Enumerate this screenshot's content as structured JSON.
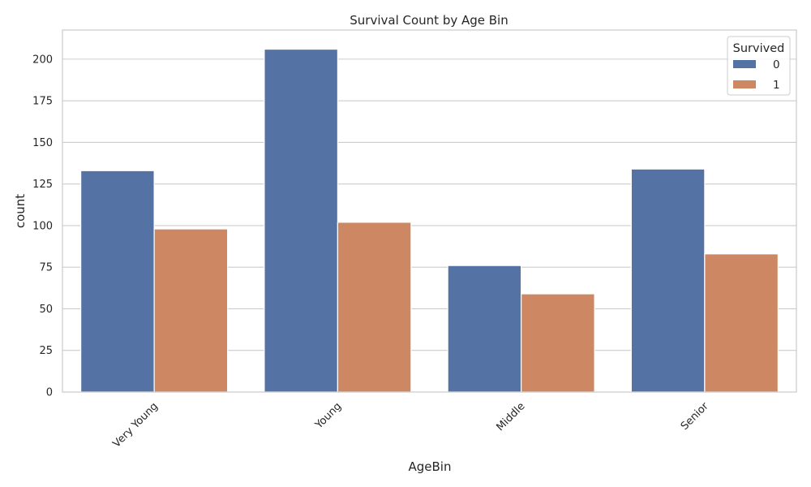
{
  "chart_data": {
    "type": "bar",
    "title": "Survival Count by Age Bin",
    "xlabel": "AgeBin",
    "ylabel": "count",
    "categories": [
      "Very Young",
      "Young",
      "Middle",
      "Senior"
    ],
    "series": [
      {
        "name": "0",
        "values": [
          133,
          206,
          76,
          134
        ],
        "color": "#5572a4"
      },
      {
        "name": "1",
        "values": [
          98,
          102,
          59,
          83
        ],
        "color": "#cd8762"
      }
    ],
    "ylim": [
      0,
      217.5
    ],
    "yticks": [
      0,
      25,
      50,
      75,
      100,
      125,
      150,
      175,
      200
    ],
    "grid": "horizontal",
    "legend": {
      "title": "Survived",
      "placement": "top-right"
    },
    "style": {
      "grid_color": "#cccccc",
      "axes_edge_color": "#cccccc",
      "text_color": "#262626"
    }
  }
}
